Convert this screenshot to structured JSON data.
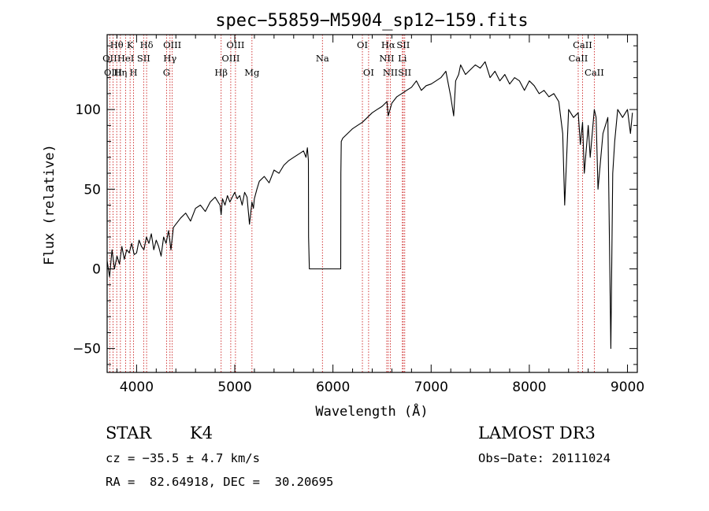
{
  "chart_data": {
    "type": "line",
    "title": "spec−55859−M5904_sp12−159.fits",
    "xlabel": "Wavelength (Å)",
    "ylabel": "Flux (relative)",
    "xlim": [
      3700,
      9100
    ],
    "ylim": [
      -65,
      147
    ],
    "xticks": [
      {
        "value": 4000,
        "label": "4000"
      },
      {
        "value": 5000,
        "label": "5000"
      },
      {
        "value": 6000,
        "label": "6000"
      },
      {
        "value": 7000,
        "label": "7000"
      },
      {
        "value": 8000,
        "label": "8000"
      },
      {
        "value": 9000,
        "label": "9000"
      }
    ],
    "yticks": [
      {
        "value": -50,
        "label": "−50"
      },
      {
        "value": 0,
        "label": "0"
      },
      {
        "value": 50,
        "label": "50"
      },
      {
        "value": 100,
        "label": "100"
      }
    ],
    "series": [
      {
        "name": "flux",
        "x": [
          3700,
          3725,
          3750,
          3775,
          3800,
          3825,
          3850,
          3875,
          3900,
          3925,
          3950,
          3975,
          4000,
          4025,
          4050,
          4075,
          4100,
          4125,
          4150,
          4175,
          4200,
          4225,
          4250,
          4275,
          4300,
          4325,
          4350,
          4375,
          4400,
          4450,
          4500,
          4550,
          4600,
          4650,
          4700,
          4750,
          4800,
          4850,
          4861,
          4875,
          4900,
          4925,
          4950,
          4975,
          5000,
          5025,
          5050,
          5075,
          5100,
          5125,
          5150,
          5175,
          5190,
          5200,
          5225,
          5250,
          5300,
          5350,
          5400,
          5450,
          5500,
          5550,
          5600,
          5650,
          5700,
          5725,
          5740,
          5750,
          5752,
          5760,
          5800,
          5850,
          5900,
          5950,
          6000,
          6050,
          6079,
          6081,
          6085,
          6100,
          6150,
          6200,
          6250,
          6300,
          6350,
          6400,
          6450,
          6500,
          6550,
          6563,
          6600,
          6650,
          6700,
          6750,
          6800,
          6850,
          6900,
          6950,
          7000,
          7050,
          7100,
          7150,
          7200,
          7230,
          7250,
          7280,
          7300,
          7350,
          7400,
          7450,
          7500,
          7550,
          7600,
          7650,
          7700,
          7750,
          7800,
          7850,
          7900,
          7950,
          8000,
          8050,
          8100,
          8150,
          8200,
          8250,
          8300,
          8340,
          8360,
          8400,
          8450,
          8498,
          8520,
          8542,
          8560,
          8600,
          8620,
          8662,
          8680,
          8700,
          8750,
          8800,
          8830,
          8850,
          8870,
          8900,
          8950,
          9000,
          9030,
          9050
        ],
        "y": [
          5,
          -5,
          12,
          0,
          8,
          3,
          14,
          6,
          12,
          10,
          16,
          9,
          10,
          18,
          14,
          12,
          20,
          16,
          22,
          12,
          18,
          14,
          8,
          20,
          16,
          24,
          12,
          26,
          28,
          32,
          35,
          30,
          38,
          40,
          36,
          42,
          45,
          40,
          34,
          44,
          40,
          46,
          42,
          45,
          48,
          44,
          46,
          40,
          48,
          45,
          28,
          42,
          38,
          44,
          50,
          55,
          58,
          54,
          62,
          60,
          65,
          68,
          70,
          72,
          74,
          70,
          76,
          68,
          20,
          0,
          0,
          0,
          0,
          0,
          0,
          0,
          0,
          60,
          80,
          82,
          85,
          88,
          90,
          92,
          95,
          98,
          100,
          102,
          105,
          96,
          104,
          108,
          110,
          112,
          114,
          118,
          112,
          115,
          116,
          118,
          120,
          124,
          108,
          96,
          118,
          122,
          128,
          122,
          125,
          128,
          126,
          130,
          120,
          124,
          118,
          122,
          116,
          120,
          118,
          112,
          118,
          115,
          110,
          112,
          108,
          110,
          105,
          85,
          40,
          100,
          95,
          98,
          78,
          92,
          60,
          90,
          70,
          100,
          95,
          50,
          85,
          95,
          -50,
          60,
          80,
          100,
          95,
          100,
          85,
          98
        ]
      }
    ],
    "emission_lines": [
      {
        "label": "Hθ",
        "wavelength": 3798,
        "row": 0
      },
      {
        "label": "OII",
        "wavelength": 3727,
        "row": 1
      },
      {
        "label": "OIII",
        "wavelength": 3760,
        "row": 2
      },
      {
        "label": "Hη",
        "wavelength": 3835,
        "row": 2
      },
      {
        "label": "K",
        "wavelength": 3934,
        "row": 0
      },
      {
        "label": "HeI",
        "wavelength": 3889,
        "row": 1
      },
      {
        "label": "H",
        "wavelength": 3969,
        "row": 2
      },
      {
        "label": "SII",
        "wavelength": 4072,
        "row": 1
      },
      {
        "label": "Hδ",
        "wavelength": 4102,
        "row": 0
      },
      {
        "label": "OIII",
        "wavelength": 4363,
        "row": 0
      },
      {
        "label": "Hγ",
        "wavelength": 4340,
        "row": 1
      },
      {
        "label": "G",
        "wavelength": 4305,
        "row": 2
      },
      {
        "label": "Hβ",
        "wavelength": 4861,
        "row": 2
      },
      {
        "label": "OIII",
        "wavelength": 5007,
        "row": 0
      },
      {
        "label": "OIII",
        "wavelength": 4959,
        "row": 1
      },
      {
        "label": "Mg",
        "wavelength": 5175,
        "row": 2
      },
      {
        "label": "Na",
        "wavelength": 5893,
        "row": 1
      },
      {
        "label": "OI",
        "wavelength": 6300,
        "row": 0
      },
      {
        "label": "OI",
        "wavelength": 6363,
        "row": 2
      },
      {
        "label": "Hα",
        "wavelength": 6563,
        "row": 0
      },
      {
        "label": "SII",
        "wavelength": 6716,
        "row": 0
      },
      {
        "label": "NII",
        "wavelength": 6548,
        "row": 1
      },
      {
        "label": "Li",
        "wavelength": 6707,
        "row": 1
      },
      {
        "label": "NII",
        "wavelength": 6584,
        "row": 2
      },
      {
        "label": "SII",
        "wavelength": 6731,
        "row": 2
      },
      {
        "label": "CaII",
        "wavelength": 8542,
        "row": 0
      },
      {
        "label": "CaII",
        "wavelength": 8498,
        "row": 1
      },
      {
        "label": "CaII",
        "wavelength": 8662,
        "row": 2
      }
    ]
  },
  "footer": {
    "object_type": "STAR",
    "subclass": "K4",
    "survey": "LAMOST DR3",
    "redshift": "cz = −35.5 ± 4.7 km/s",
    "obs_date": "Obs−Date: 20111024",
    "coords": "RA =  82.64918, DEC =  30.20695"
  },
  "colors": {
    "line_marker": "#cc2222",
    "spectrum": "#000000"
  }
}
